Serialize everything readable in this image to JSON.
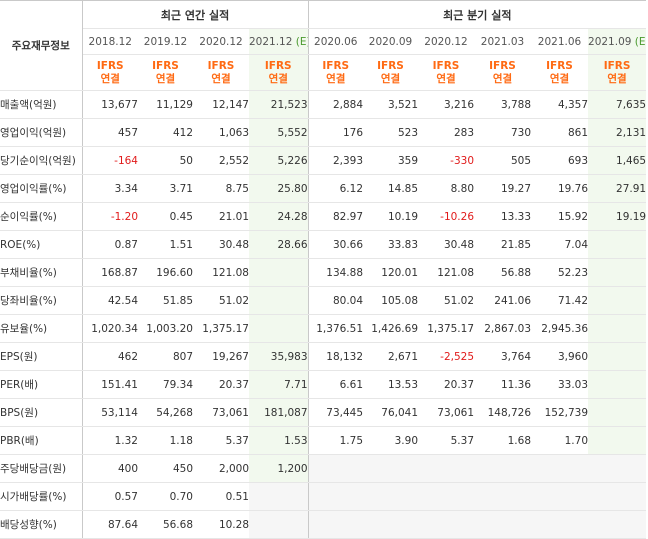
{
  "header": {
    "corner": "주요재무정보",
    "annual_title": "최근 연간 실적",
    "quarter_title": "최근 분기 실적",
    "ifrs_top": "IFRS",
    "ifrs_bottom": "연결",
    "est_mark": "(E)"
  },
  "periods": [
    {
      "label": "2018.12",
      "est": false
    },
    {
      "label": "2019.12",
      "est": false
    },
    {
      "label": "2020.12",
      "est": false
    },
    {
      "label": "2021.12",
      "est": true
    },
    {
      "label": "2020.06",
      "est": false
    },
    {
      "label": "2020.09",
      "est": false
    },
    {
      "label": "2020.12",
      "est": false
    },
    {
      "label": "2021.03",
      "est": false
    },
    {
      "label": "2021.06",
      "est": false
    },
    {
      "label": "2021.09",
      "est": true
    }
  ],
  "rows": [
    {
      "label": "매출액(억원)",
      "values": [
        "13,677",
        "11,129",
        "12,147",
        "21,523",
        "2,884",
        "3,521",
        "3,216",
        "3,788",
        "4,357",
        "7,635"
      ]
    },
    {
      "label": "영업이익(억원)",
      "values": [
        "457",
        "412",
        "1,063",
        "5,552",
        "176",
        "523",
        "283",
        "730",
        "861",
        "2,131"
      ]
    },
    {
      "label": "당기순이익(억원)",
      "values": [
        "-164",
        "50",
        "2,552",
        "5,226",
        "2,393",
        "359",
        "-330",
        "505",
        "693",
        "1,465"
      ]
    },
    {
      "label": "영업이익률(%)",
      "values": [
        "3.34",
        "3.71",
        "8.75",
        "25.80",
        "6.12",
        "14.85",
        "8.80",
        "19.27",
        "19.76",
        "27.91"
      ]
    },
    {
      "label": "순이익률(%)",
      "values": [
        "-1.20",
        "0.45",
        "21.01",
        "24.28",
        "82.97",
        "10.19",
        "-10.26",
        "13.33",
        "15.92",
        "19.19"
      ]
    },
    {
      "label": "ROE(%)",
      "values": [
        "0.87",
        "1.51",
        "30.48",
        "28.66",
        "30.66",
        "33.83",
        "30.48",
        "21.85",
        "7.04",
        ""
      ]
    },
    {
      "label": "부채비율(%)",
      "values": [
        "168.87",
        "196.60",
        "121.08",
        "",
        "134.88",
        "120.01",
        "121.08",
        "56.88",
        "52.23",
        ""
      ]
    },
    {
      "label": "당좌비율(%)",
      "values": [
        "42.54",
        "51.85",
        "51.02",
        "",
        "80.04",
        "105.08",
        "51.02",
        "241.06",
        "71.42",
        ""
      ]
    },
    {
      "label": "유보율(%)",
      "values": [
        "1,020.34",
        "1,003.20",
        "1,375.17",
        "",
        "1,376.51",
        "1,426.69",
        "1,375.17",
        "2,867.03",
        "2,945.36",
        ""
      ]
    },
    {
      "label": "EPS(원)",
      "values": [
        "462",
        "807",
        "19,267",
        "35,983",
        "18,132",
        "2,671",
        "-2,525",
        "3,764",
        "3,960",
        ""
      ]
    },
    {
      "label": "PER(배)",
      "values": [
        "151.41",
        "79.34",
        "20.37",
        "7.71",
        "6.61",
        "13.53",
        "20.37",
        "11.36",
        "33.03",
        ""
      ]
    },
    {
      "label": "BPS(원)",
      "values": [
        "53,114",
        "54,268",
        "73,061",
        "181,087",
        "73,445",
        "76,041",
        "73,061",
        "148,726",
        "152,739",
        ""
      ]
    },
    {
      "label": "PBR(배)",
      "values": [
        "1.32",
        "1.18",
        "5.37",
        "1.53",
        "1.75",
        "3.90",
        "5.37",
        "1.68",
        "1.70",
        ""
      ]
    },
    {
      "label": "주당배당금(원)",
      "values": [
        "400",
        "450",
        "2,000",
        "1,200",
        "",
        "",
        "",
        "",
        "",
        ""
      ]
    },
    {
      "label": "시가배당률(%)",
      "values": [
        "0.57",
        "0.70",
        "0.51",
        "",
        "",
        "",
        "",
        "",
        "",
        ""
      ]
    },
    {
      "label": "배당성향(%)",
      "values": [
        "87.64",
        "56.68",
        "10.28",
        "",
        "",
        "",
        "",
        "",
        "",
        ""
      ]
    }
  ]
}
